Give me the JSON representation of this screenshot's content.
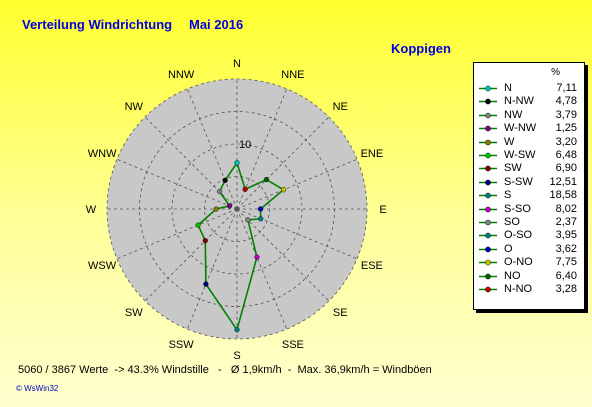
{
  "title": "Verteilung Windrichtung",
  "period": "Mai 2016",
  "location": "Koppigen",
  "footer": "5060 / 3867 Werte  -> 43.3% Windstille   -   Ø 1,9km/h  -  Max. 36,9km/h = Windböen",
  "brand": "© WsWin32",
  "legend_unit": "%",
  "colors": {
    "background": "#ffff33",
    "text": "#0000e0",
    "plot": "#c8c8c8",
    "line": "#008000"
  },
  "chart_data": {
    "type": "radar",
    "unit": "%",
    "directions": [
      "N",
      "NNE",
      "NE",
      "ENE",
      "E",
      "ESE",
      "SE",
      "SSE",
      "S",
      "SSW",
      "SW",
      "WSW",
      "W",
      "WNW",
      "NW",
      "NNW"
    ],
    "ring_label": "10",
    "rmax": 20,
    "ring_values": [
      5,
      10,
      15,
      20
    ],
    "grid": true,
    "legend_position": "right",
    "series": [
      {
        "label": "N",
        "value": 7.11,
        "value_text": "7,11",
        "angle": 0,
        "color": "#00c0c0"
      },
      {
        "label": "N-NW",
        "value": 4.78,
        "value_text": "4,78",
        "angle": 337.5,
        "color": "#000000"
      },
      {
        "label": "NW",
        "value": 3.79,
        "value_text": "3,79",
        "angle": 315,
        "color": "#808080"
      },
      {
        "label": "W-NW",
        "value": 1.25,
        "value_text": "1,25",
        "angle": 292.5,
        "color": "#800080"
      },
      {
        "label": "W",
        "value": 3.2,
        "value_text": "3,20",
        "angle": 270,
        "color": "#808000"
      },
      {
        "label": "W-SW",
        "value": 6.48,
        "value_text": "6,48",
        "angle": 247.5,
        "color": "#00c000"
      },
      {
        "label": "SW",
        "value": 6.9,
        "value_text": "6,90",
        "angle": 225,
        "color": "#800000"
      },
      {
        "label": "S-SW",
        "value": 12.51,
        "value_text": "12,51",
        "angle": 202.5,
        "color": "#000080"
      },
      {
        "label": "S",
        "value": 18.58,
        "value_text": "18,58",
        "angle": 180,
        "color": "#008080"
      },
      {
        "label": "S-SO",
        "value": 8.02,
        "value_text": "8,02",
        "angle": 157.5,
        "color": "#c000c0"
      },
      {
        "label": "SO",
        "value": 2.37,
        "value_text": "2,37",
        "angle": 135,
        "color": "#808080"
      },
      {
        "label": "O-SO",
        "value": 3.95,
        "value_text": "3,95",
        "angle": 112.5,
        "color": "#008080"
      },
      {
        "label": "O",
        "value": 3.62,
        "value_text": "3,62",
        "angle": 90,
        "color": "#0000c0"
      },
      {
        "label": "O-NO",
        "value": 7.75,
        "value_text": "7,75",
        "angle": 67.5,
        "color": "#c0c000"
      },
      {
        "label": "NO",
        "value": 6.4,
        "value_text": "6,40",
        "angle": 45,
        "color": "#006000"
      },
      {
        "label": "N-NO",
        "value": 3.28,
        "value_text": "3,28",
        "angle": 22.5,
        "color": "#c00000"
      }
    ]
  }
}
